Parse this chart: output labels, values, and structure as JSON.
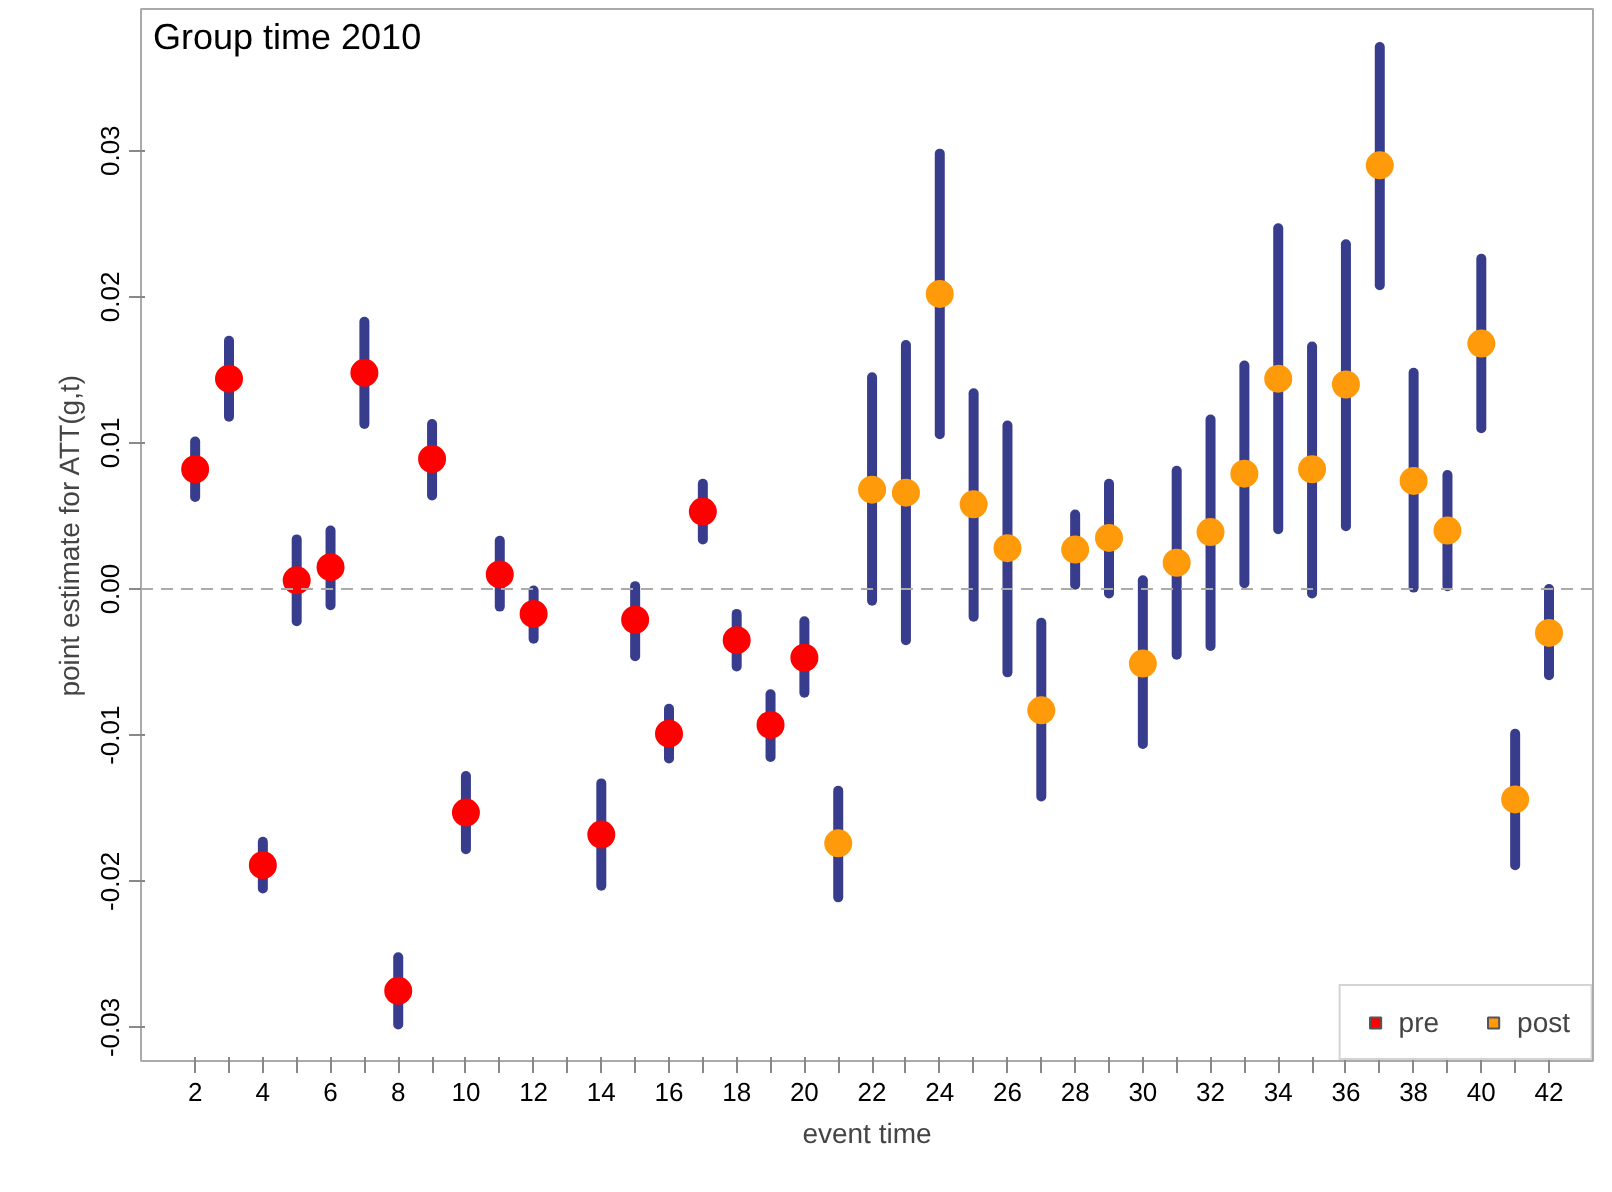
{
  "chart_data": {
    "type": "scatter",
    "title": "Group time 2010",
    "xlabel": "event time",
    "ylabel": "point estimate for ATT(g,t)",
    "xlim": [
      0.4,
      43.3
    ],
    "ylim": [
      -0.0323,
      0.0397
    ],
    "xticks": [
      2,
      {
        "value": 3,
        "label": null
      },
      4,
      {
        "value": 5,
        "label": null
      },
      6,
      {
        "value": 7,
        "label": null
      },
      8,
      {
        "value": 9,
        "label": null
      },
      10,
      {
        "value": 11,
        "label": null
      },
      12,
      {
        "value": 13,
        "label": null
      },
      14,
      {
        "value": 15,
        "label": null
      },
      16,
      {
        "value": 17,
        "label": null
      },
      18,
      {
        "value": 19,
        "label": null
      },
      20,
      {
        "value": 21,
        "label": null
      },
      22,
      {
        "value": 23,
        "label": null
      },
      24,
      {
        "value": 25,
        "label": null
      },
      26,
      {
        "value": 27,
        "label": null
      },
      28,
      {
        "value": 29,
        "label": null
      },
      30,
      {
        "value": 31,
        "label": null
      },
      32,
      {
        "value": 33,
        "label": null
      },
      34,
      {
        "value": 35,
        "label": null
      },
      36,
      {
        "value": 37,
        "label": null
      },
      38,
      {
        "value": 39,
        "label": null
      },
      40,
      {
        "value": 41,
        "label": null
      },
      42
    ],
    "yticks": [
      {
        "value": -0.03,
        "label": "-0.03"
      },
      {
        "value": -0.02,
        "label": "-0.02"
      },
      {
        "value": -0.01,
        "label": "-0.01"
      },
      {
        "value": 0,
        "label": "0.00"
      },
      {
        "value": 0.01,
        "label": "0.01"
      },
      {
        "value": 0.02,
        "label": "0.02"
      },
      {
        "value": 0.03,
        "label": "0.03"
      }
    ],
    "grid": false,
    "legend": "bottom right",
    "marker": "circle",
    "ref_lines": [
      {
        "axis": "y",
        "value": 0,
        "color": "#aaaaaa",
        "line_style": "dashed"
      }
    ],
    "series": [
      {
        "name": "pre",
        "color": "#ff0000",
        "x": [
          2,
          3,
          4,
          5,
          6,
          7,
          8,
          9,
          10,
          11,
          12,
          14,
          15,
          16,
          17,
          18,
          19,
          20
        ],
        "values": [
          0.0082,
          0.0144,
          -0.0189,
          0.0006,
          0.0015,
          0.0148,
          -0.0275,
          0.0089,
          -0.0153,
          0.001,
          -0.0017,
          -0.0168,
          -0.0021,
          -0.0099,
          0.0053,
          -0.0035,
          -0.0093,
          -0.0047
        ],
        "errors": [
          [
            0.0063,
            0.0101
          ],
          [
            0.0118,
            0.017
          ],
          [
            -0.0205,
            -0.0173
          ],
          [
            -0.0022,
            0.0034
          ],
          [
            -0.0011,
            0.004
          ],
          [
            0.0113,
            0.0183
          ],
          [
            -0.0298,
            -0.0252
          ],
          [
            0.0064,
            0.0113
          ],
          [
            -0.0178,
            -0.0128
          ],
          [
            -0.0012,
            0.0033
          ],
          [
            -0.0034,
            -0.0001
          ],
          [
            -0.0203,
            -0.0133
          ],
          [
            -0.0046,
            0.0002
          ],
          [
            -0.0116,
            -0.0082
          ],
          [
            0.0034,
            0.0072
          ],
          [
            -0.0053,
            -0.0017
          ],
          [
            -0.0115,
            -0.0072
          ],
          [
            -0.0071,
            -0.0022
          ]
        ]
      },
      {
        "name": "post",
        "color": "#ff9a0a",
        "x": [
          21,
          22,
          23,
          24,
          25,
          26,
          27,
          28,
          29,
          30,
          31,
          32,
          33,
          34,
          35,
          36,
          37,
          38,
          39,
          40,
          41,
          42
        ],
        "values": [
          -0.0174,
          0.0068,
          0.0066,
          0.0202,
          0.0058,
          0.0028,
          -0.0083,
          0.0027,
          0.0035,
          -0.0051,
          0.0018,
          0.0039,
          0.0079,
          0.0144,
          0.0082,
          0.014,
          0.029,
          0.0074,
          0.004,
          0.0168,
          -0.0144,
          -0.003
        ],
        "errors": [
          [
            -0.0211,
            -0.0138
          ],
          [
            -0.0008,
            0.0145
          ],
          [
            -0.0035,
            0.0167
          ],
          [
            0.0106,
            0.0298
          ],
          [
            -0.0019,
            0.0134
          ],
          [
            -0.0057,
            0.0112
          ],
          [
            -0.0142,
            -0.0023
          ],
          [
            0.0003,
            0.0051
          ],
          [
            -0.0003,
            0.0072
          ],
          [
            -0.0106,
            0.0006
          ],
          [
            -0.0045,
            0.0081
          ],
          [
            -0.0039,
            0.0116
          ],
          [
            0.0004,
            0.0153
          ],
          [
            0.0041,
            0.0247
          ],
          [
            -0.0003,
            0.0166
          ],
          [
            0.0043,
            0.0236
          ],
          [
            0.0208,
            0.0371
          ],
          [
            0.0001,
            0.0148
          ],
          [
            0.0002,
            0.0078
          ],
          [
            0.011,
            0.0226
          ],
          [
            -0.0189,
            -0.0099
          ],
          [
            -0.0059,
            0.0
          ]
        ]
      }
    ]
  }
}
